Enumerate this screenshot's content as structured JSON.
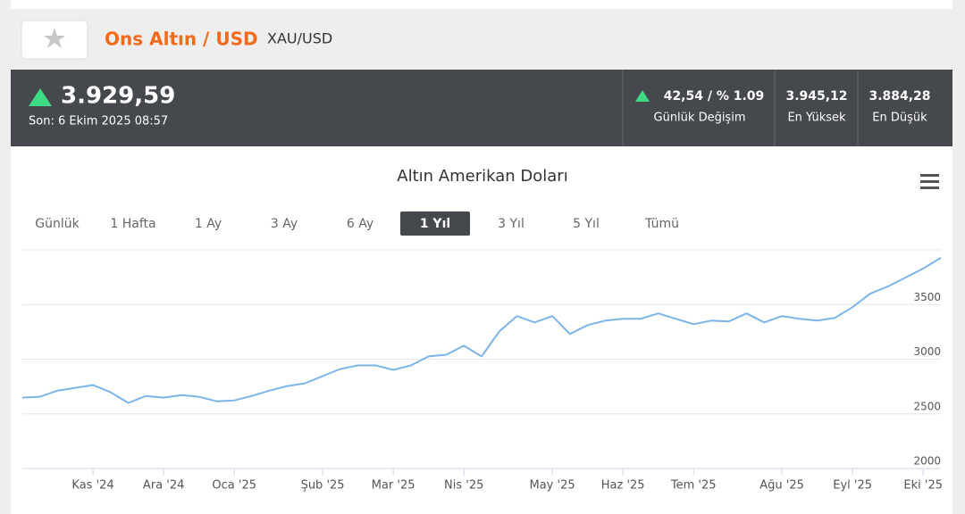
{
  "header": {
    "title": "Ons Altın / USD",
    "symbol": "XAU/USD"
  },
  "quote": {
    "price": "3.929,59",
    "last_update": "Son: 6 Ekim 2025 08:57",
    "change": "42,54 / % 1.09",
    "change_label": "Günlük Değişim",
    "high": "3.945,12",
    "high_label": "En Yüksek",
    "low": "3.884,28",
    "low_label": "En Düşük"
  },
  "range_buttons": [
    {
      "label": "Günlük",
      "selected": false
    },
    {
      "label": "1 Hafta",
      "selected": false
    },
    {
      "label": "1 Ay",
      "selected": false
    },
    {
      "label": "3 Ay",
      "selected": false
    },
    {
      "label": "6 Ay",
      "selected": false
    },
    {
      "label": "1 Yıl",
      "selected": true
    },
    {
      "label": "3 Yıl",
      "selected": false
    },
    {
      "label": "5 Yıl",
      "selected": false
    },
    {
      "label": "Tümü",
      "selected": false
    }
  ],
  "chart_data": {
    "type": "line",
    "title": "Altın Amerikan Doları",
    "categories": [
      null,
      null,
      null,
      null,
      "Kas '24",
      null,
      null,
      null,
      "Ara '24",
      null,
      null,
      null,
      "Oca '25",
      null,
      null,
      null,
      null,
      "Şub '25",
      null,
      null,
      null,
      "Mar '25",
      null,
      null,
      null,
      "Nis '25",
      null,
      null,
      null,
      null,
      "May '25",
      null,
      null,
      null,
      "Haz '25",
      null,
      null,
      null,
      "Tem '25",
      null,
      null,
      null,
      null,
      "Ağu '25",
      null,
      null,
      null,
      "Eyl '25",
      null,
      null,
      null,
      "Eki '25",
      null
    ],
    "series": [
      {
        "color": "#7cb5ec",
        "values": [
          2648,
          2656,
          2713,
          2738,
          2763,
          2697,
          2600,
          2664,
          2648,
          2672,
          2656,
          2615,
          2623,
          2664,
          2713,
          2754,
          2779,
          2845,
          2910,
          2943,
          2943,
          2902,
          2943,
          3025,
          3041,
          3123,
          3025,
          3254,
          3394,
          3336,
          3394,
          3230,
          3312,
          3353,
          3369,
          3369,
          3419,
          3369,
          3320,
          3353,
          3345,
          3419,
          3336,
          3394,
          3369,
          3353,
          3378,
          3476,
          3599,
          3665,
          3747,
          3829,
          3927
        ]
      }
    ],
    "ylim": [
      2000,
      4000
    ],
    "yticks": [
      2000,
      2500,
      3000,
      3500
    ],
    "grid": true
  }
}
